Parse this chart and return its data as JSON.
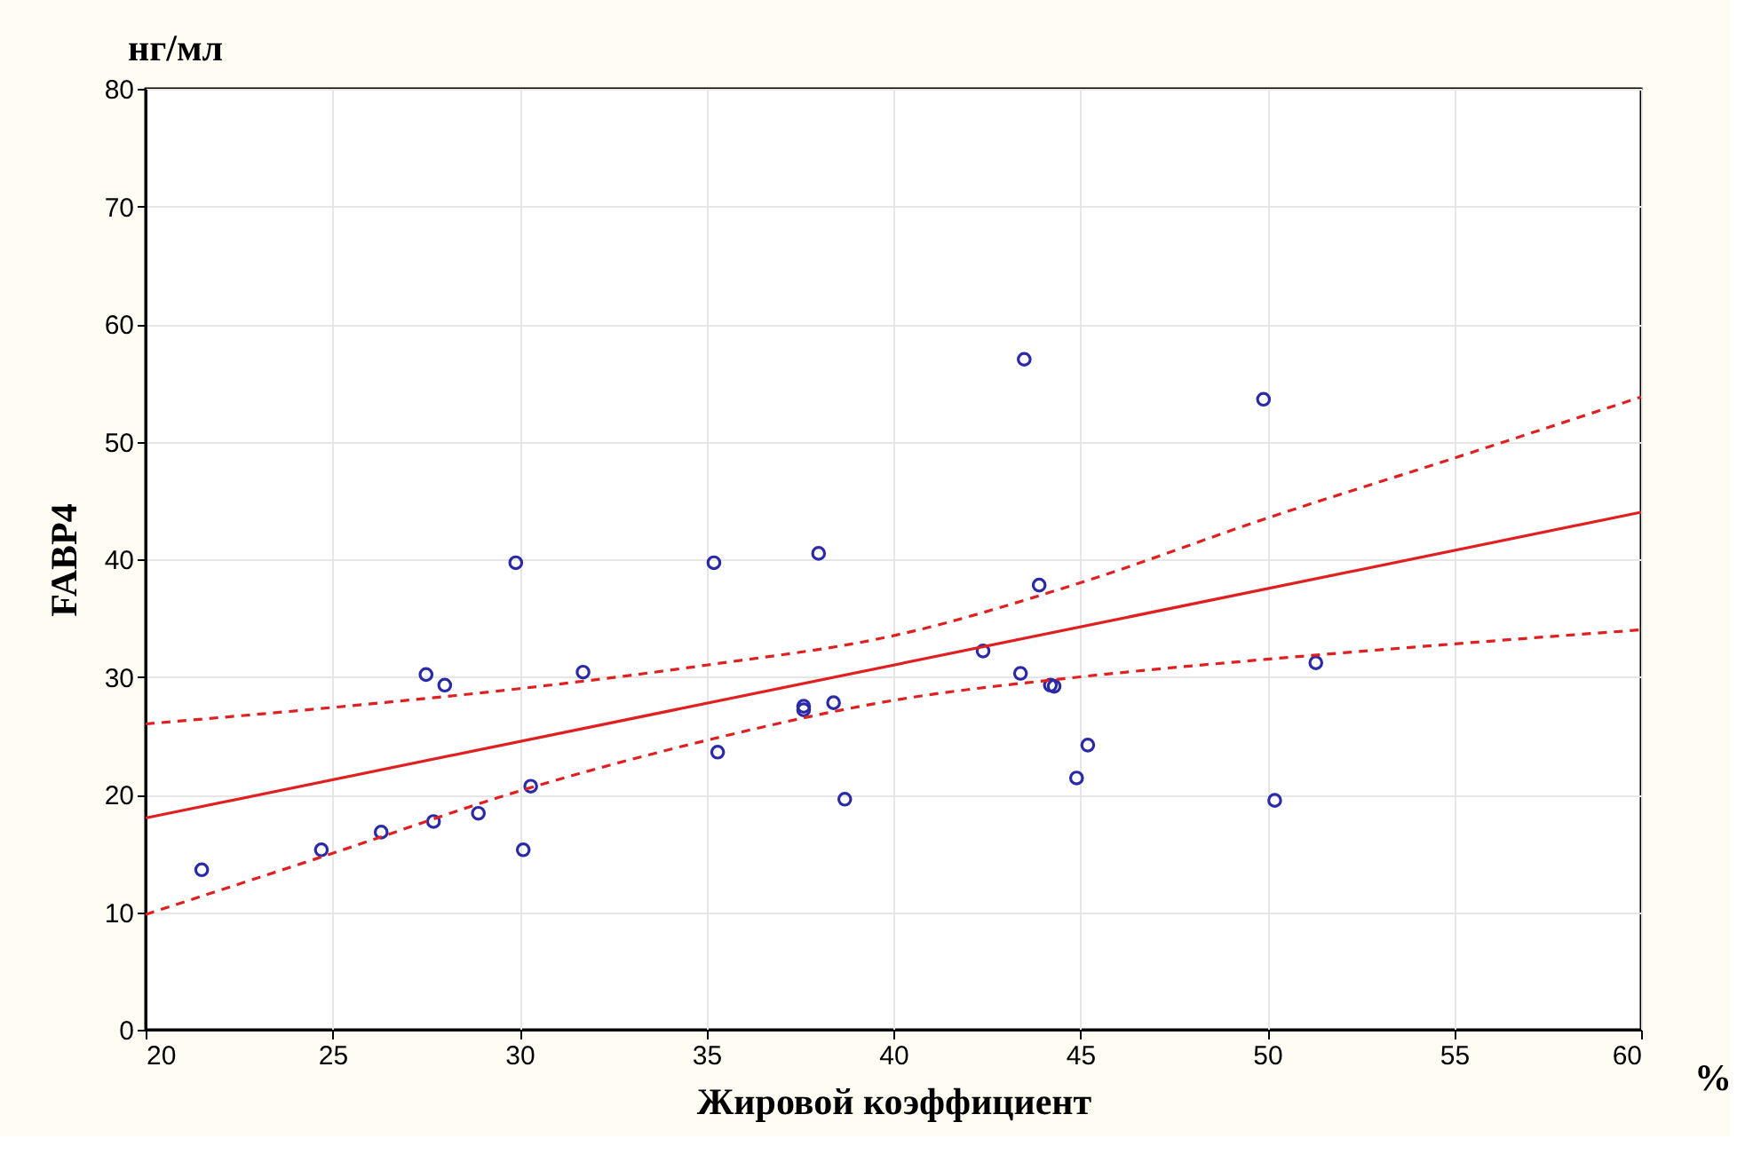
{
  "chart_data": {
    "type": "scatter",
    "xlabel": "Жировой коэффициент",
    "ylabel": "FABP4",
    "annotations": [
      "нг/мл",
      "%"
    ],
    "xlim": [
      20,
      60
    ],
    "xticks": [
      20,
      25,
      30,
      35,
      40,
      45,
      50,
      55,
      60
    ],
    "ylim": [
      0,
      80
    ],
    "yticks": [
      0,
      10,
      20,
      30,
      40,
      50,
      60,
      70,
      80
    ],
    "grid": true,
    "series": [
      {
        "marker": "circle",
        "color": "#2a2aa8",
        "x": [
          21.5,
          24.7,
          26.3,
          27.5,
          27.7,
          28.0,
          28.9,
          29.9,
          30.1,
          30.3,
          31.7,
          35.2,
          35.3,
          37.6,
          37.6,
          38.0,
          38.4,
          38.7,
          42.4,
          43.4,
          43.5,
          43.9,
          44.2,
          44.3,
          44.9,
          45.2,
          49.9,
          50.2,
          51.3
        ],
        "values": [
          13.6,
          15.3,
          16.8,
          30.2,
          17.7,
          29.3,
          18.4,
          39.7,
          15.3,
          20.7,
          30.4,
          39.7,
          23.6,
          27.5,
          27.2,
          40.5,
          27.8,
          19.6,
          32.2,
          30.3,
          57.0,
          37.8,
          29.3,
          29.2,
          21.4,
          24.2,
          53.6,
          19.5,
          31.2
        ]
      },
      {
        "type": "line",
        "marker": "none",
        "color": "#e02020",
        "line_style": "solid",
        "x": [
          20,
          60
        ],
        "values": [
          18,
          44
        ]
      },
      {
        "type": "line",
        "marker": "none",
        "color": "#e02020",
        "line_style": "dashed",
        "x": [
          20,
          25,
          30,
          35,
          40,
          45,
          50,
          55,
          60
        ],
        "values": [
          26,
          27.4,
          29,
          31,
          33.5,
          38,
          43.5,
          48.6,
          53.8
        ]
      },
      {
        "type": "line",
        "marker": "none",
        "color": "#e02020",
        "line_style": "dashed",
        "x": [
          20,
          25,
          30,
          35,
          40,
          45,
          50,
          55,
          60
        ],
        "values": [
          9.8,
          15,
          20.3,
          24.6,
          28,
          30,
          31.5,
          32.8,
          34
        ]
      }
    ]
  }
}
